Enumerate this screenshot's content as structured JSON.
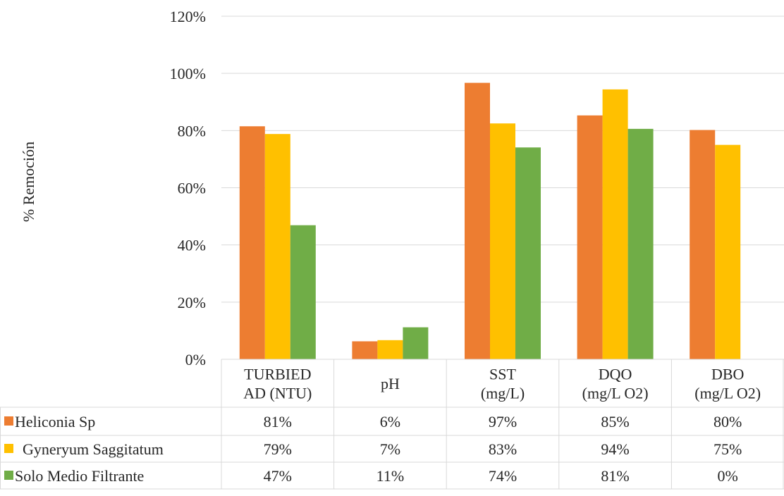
{
  "chart_data": {
    "type": "bar",
    "title": "",
    "xlabel": "",
    "ylabel": "% Remoción",
    "ylim": [
      0,
      120
    ],
    "yticks": [
      "0%",
      "20%",
      "40%",
      "60%",
      "80%",
      "100%",
      "120%"
    ],
    "grid": true,
    "legend": "data-table",
    "categories": [
      [
        "TURBIED",
        "AD (NTU)"
      ],
      [
        "pH"
      ],
      [
        "SST",
        "(mg/L)"
      ],
      [
        "DQO",
        "(mg/L O2)"
      ],
      [
        "DBO",
        "(mg/L O2)"
      ]
    ],
    "series": [
      {
        "name": "Heliconia Sp",
        "color": "#ED7D31",
        "values": [
          81.5,
          6.3,
          96.7,
          85.3,
          80.2
        ],
        "labels": [
          "81%",
          "6%",
          "97%",
          "85%",
          "80%"
        ]
      },
      {
        "name": "Gyneryum Saggitatum",
        "color": "#FFC000",
        "values": [
          78.8,
          6.7,
          82.5,
          94.4,
          75.0
        ],
        "labels": [
          "79%",
          "7%",
          "83%",
          "94%",
          "75%"
        ]
      },
      {
        "name": "Solo Medio Filtrante",
        "color": "#70AD47",
        "values": [
          46.9,
          11.2,
          74.1,
          80.6,
          0
        ],
        "labels": [
          "47%",
          "11%",
          "74%",
          "81%",
          "0%"
        ]
      }
    ]
  }
}
